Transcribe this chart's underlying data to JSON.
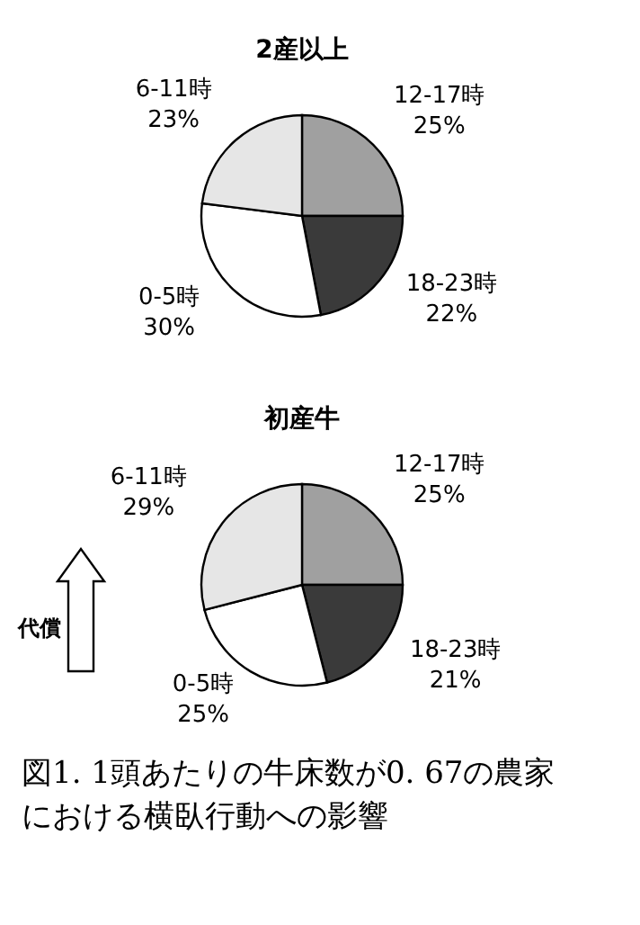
{
  "chart_data": [
    {
      "type": "pie",
      "title": "2産以上",
      "categories": [
        "12-17時",
        "18-23時",
        "0-5時",
        "6-11時"
      ],
      "values": [
        25,
        22,
        30,
        23
      ],
      "value_labels": [
        "25%",
        "22%",
        "30%",
        "23%"
      ],
      "colors": [
        "#a0a0a0",
        "#3a3a3a",
        "#ffffff",
        "#e6e6e6"
      ]
    },
    {
      "type": "pie",
      "title": "初産牛",
      "categories": [
        "12-17時",
        "18-23時",
        "0-5時",
        "6-11時"
      ],
      "values": [
        25,
        21,
        25,
        29
      ],
      "value_labels": [
        "25%",
        "21%",
        "25%",
        "29%"
      ],
      "colors": [
        "#a0a0a0",
        "#3a3a3a",
        "#ffffff",
        "#e6e6e6"
      ],
      "annotations": [
        "代償",
        "図1. 1頭あたりの牛床数が0. 67の農家における横臥行動への影響"
      ]
    }
  ]
}
